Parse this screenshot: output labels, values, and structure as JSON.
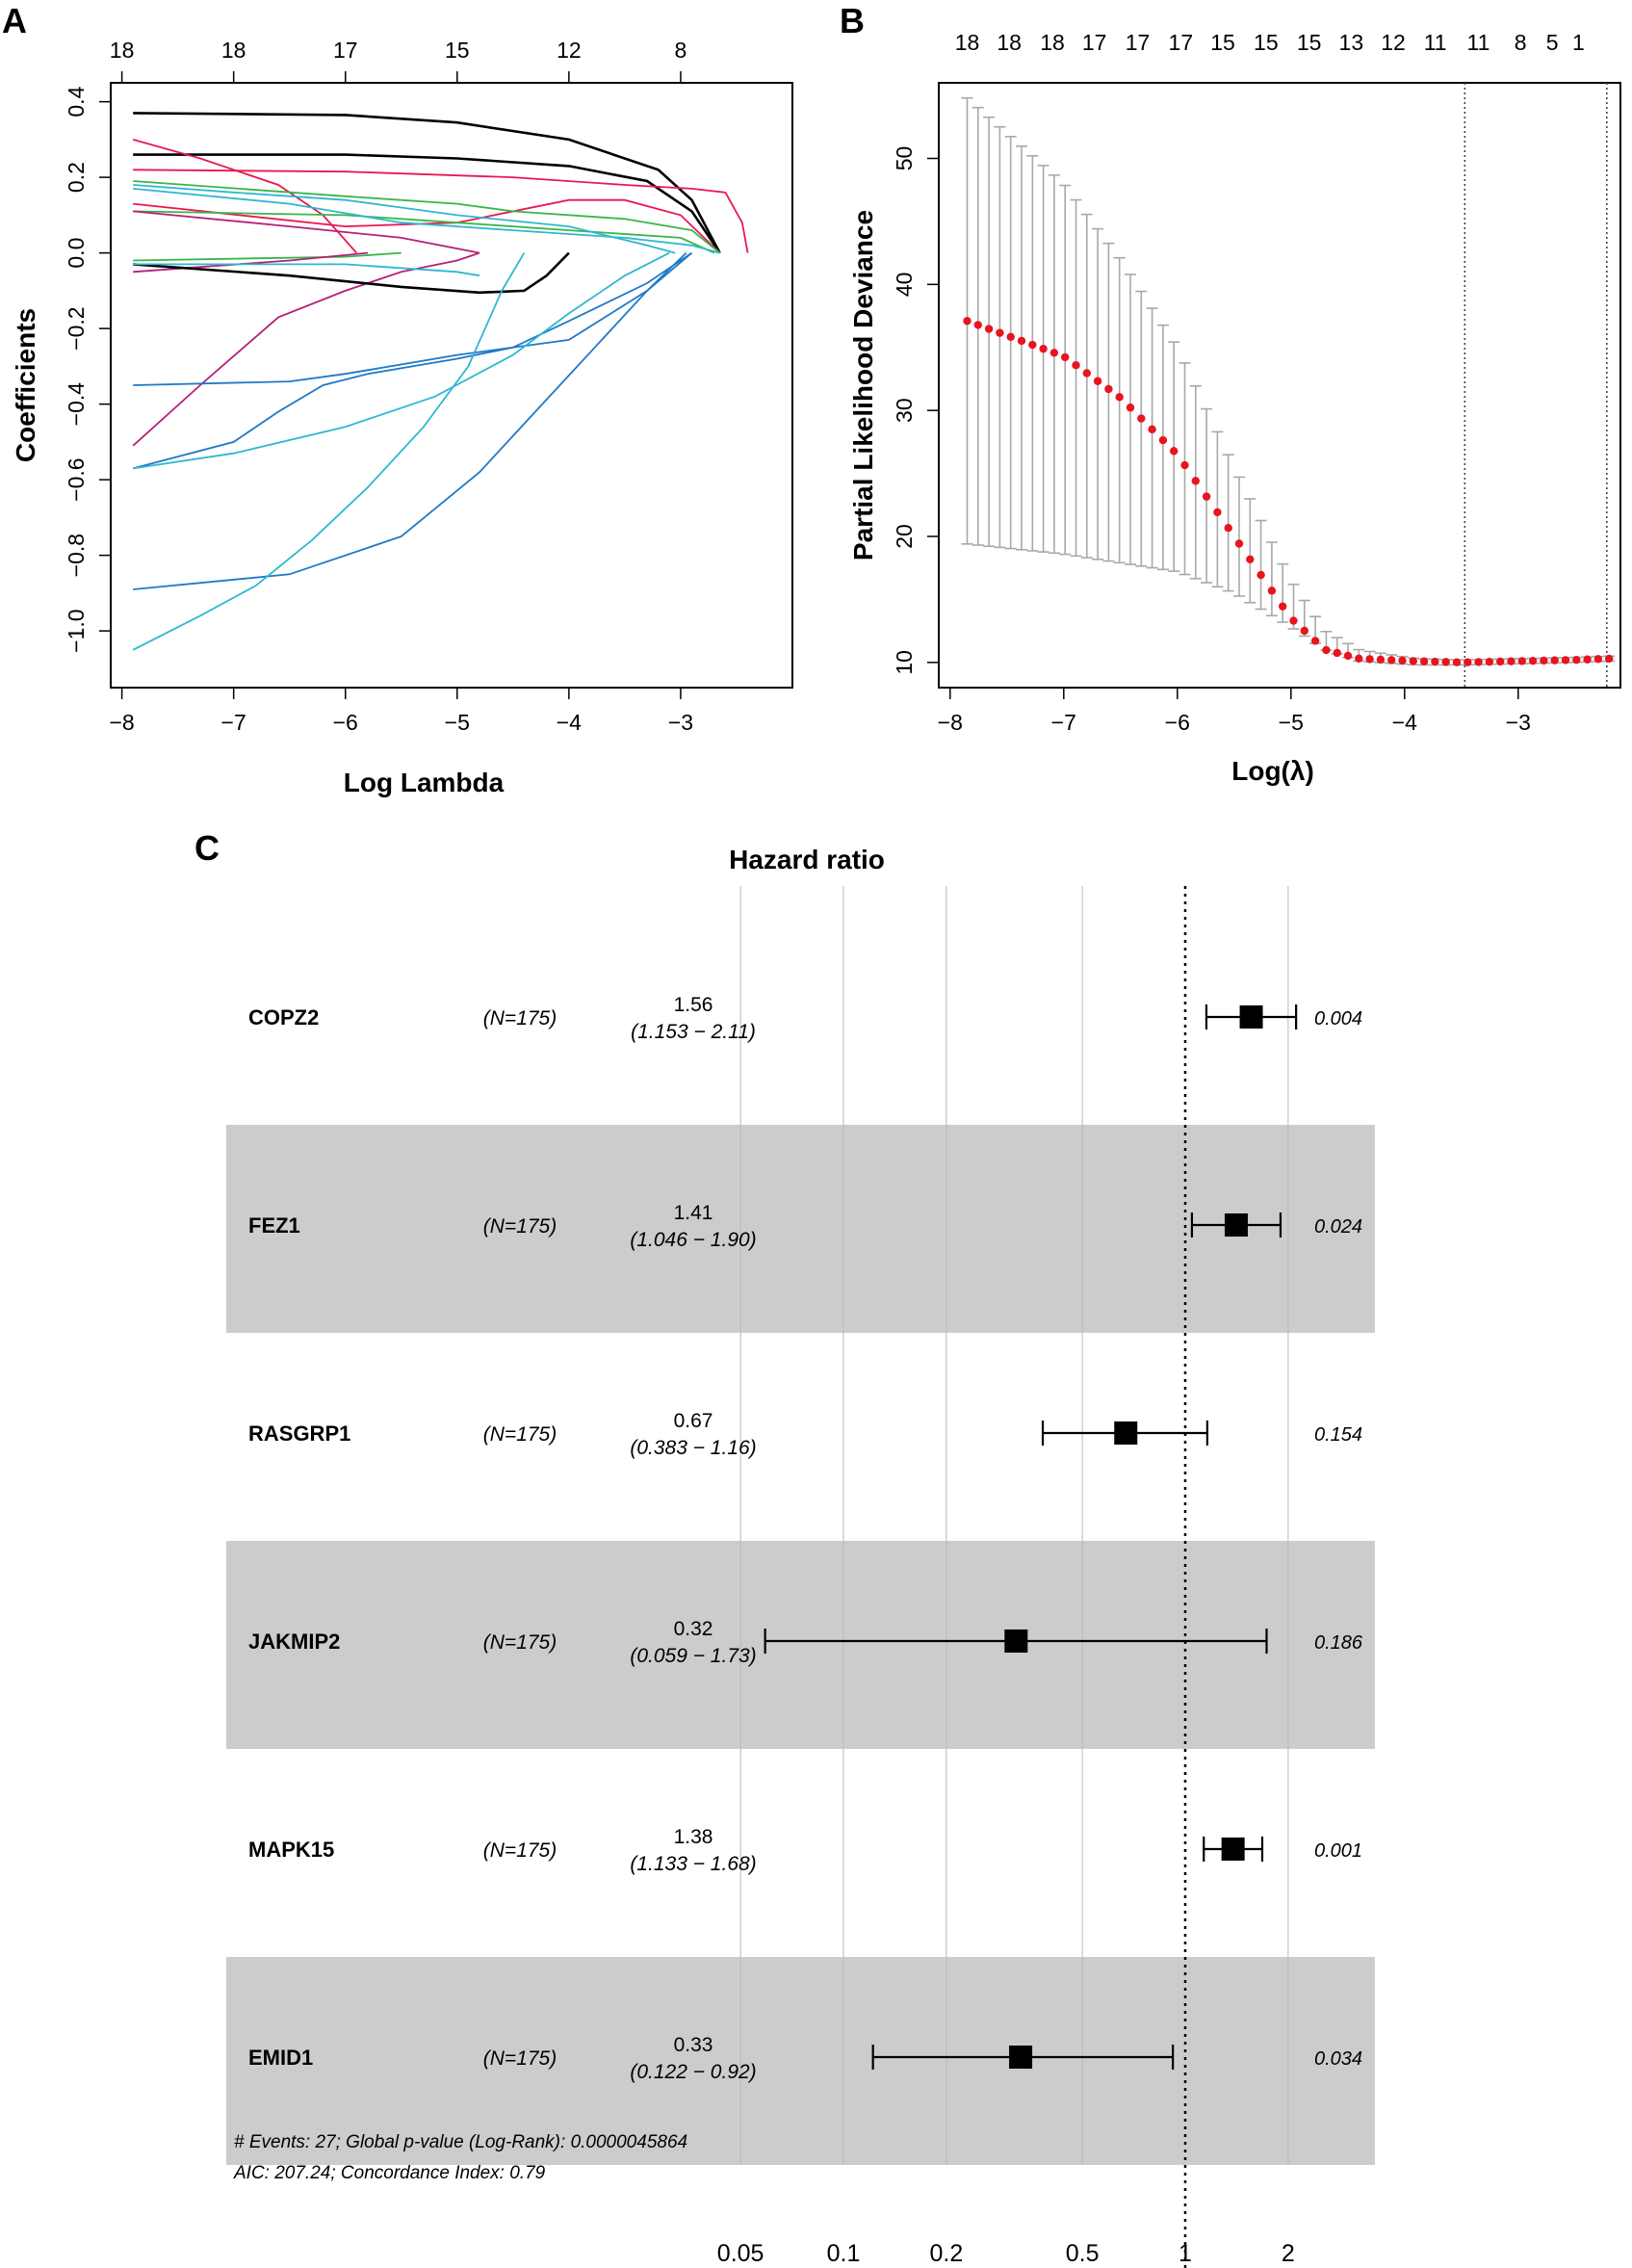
{
  "chart_data": [
    {
      "type": "line",
      "panel": "A",
      "xlabel": "Log Lambda",
      "ylabel": "Coefficients",
      "xlim": [
        -8.1,
        -2.0
      ],
      "ylim": [
        -1.15,
        0.45
      ],
      "x_ticks": [
        -8,
        -7,
        -6,
        -5,
        -4,
        -3
      ],
      "y_ticks": [
        -1.0,
        -0.8,
        -0.6,
        -0.4,
        -0.2,
        0.0,
        0.2,
        0.4
      ],
      "top_axis": {
        "positions": [
          -8,
          -7,
          -6,
          -5,
          -4,
          -3
        ],
        "labels": [
          "18",
          "18",
          "17",
          "15",
          "12",
          "8"
        ]
      },
      "series": [
        {
          "color": "#000000",
          "points": [
            [
              -7.9,
              0.37
            ],
            [
              -6,
              0.365
            ],
            [
              -5,
              0.345
            ],
            [
              -4,
              0.3
            ],
            [
              -3.2,
              0.22
            ],
            [
              -2.9,
              0.14
            ],
            [
              -2.65,
              0.0
            ]
          ]
        },
        {
          "color": "#000000",
          "points": [
            [
              -7.9,
              0.26
            ],
            [
              -6,
              0.26
            ],
            [
              -5,
              0.25
            ],
            [
              -4,
              0.23
            ],
            [
              -3.3,
              0.19
            ],
            [
              -2.9,
              0.11
            ],
            [
              -2.65,
              0.0
            ]
          ]
        },
        {
          "color": "#e8194f",
          "points": [
            [
              -7.9,
              0.22
            ],
            [
              -6,
              0.215
            ],
            [
              -4.5,
              0.2
            ],
            [
              -3.5,
              0.18
            ],
            [
              -2.9,
              0.17
            ],
            [
              -2.6,
              0.16
            ],
            [
              -2.45,
              0.08
            ],
            [
              -2.4,
              0.0
            ]
          ]
        },
        {
          "color": "#e8194f",
          "points": [
            [
              -7.9,
              0.3
            ],
            [
              -7.3,
              0.25
            ],
            [
              -6.6,
              0.18
            ],
            [
              -6.2,
              0.1
            ],
            [
              -5.9,
              0.0
            ]
          ]
        },
        {
          "color": "#e8194f",
          "points": [
            [
              -7.9,
              0.13
            ],
            [
              -6,
              0.07
            ],
            [
              -5,
              0.08
            ],
            [
              -4,
              0.14
            ],
            [
              -3.5,
              0.14
            ],
            [
              -3.0,
              0.1
            ],
            [
              -2.65,
              0.0
            ]
          ]
        },
        {
          "color": "#3ab54a",
          "points": [
            [
              -7.9,
              0.19
            ],
            [
              -6,
              0.15
            ],
            [
              -5,
              0.13
            ],
            [
              -4.5,
              0.11
            ],
            [
              -3.5,
              0.09
            ],
            [
              -2.9,
              0.06
            ],
            [
              -2.65,
              0.0
            ]
          ]
        },
        {
          "color": "#3ab54a",
          "points": [
            [
              -7.9,
              0.11
            ],
            [
              -6,
              0.1
            ],
            [
              -5,
              0.08
            ],
            [
              -4,
              0.06
            ],
            [
              -3,
              0.04
            ],
            [
              -2.7,
              0.0
            ]
          ]
        },
        {
          "color": "#3ab54a",
          "points": [
            [
              -7.9,
              -0.02
            ],
            [
              -6,
              -0.01
            ],
            [
              -5.5,
              0.0
            ]
          ]
        },
        {
          "color": "#2eb8cf",
          "points": [
            [
              -7.9,
              0.17
            ],
            [
              -6.5,
              0.13
            ],
            [
              -5.5,
              0.08
            ],
            [
              -4.5,
              0.06
            ],
            [
              -3.5,
              0.04
            ],
            [
              -2.9,
              0.02
            ],
            [
              -2.65,
              0.0
            ]
          ]
        },
        {
          "color": "#b5207a",
          "points": [
            [
              -7.9,
              0.11
            ],
            [
              -6.5,
              0.07
            ],
            [
              -5.5,
              0.04
            ],
            [
              -4.8,
              0.0
            ]
          ]
        },
        {
          "color": "#b5207a",
          "points": [
            [
              -7.9,
              -0.05
            ],
            [
              -6.5,
              -0.02
            ],
            [
              -5.8,
              0.0
            ]
          ]
        },
        {
          "color": "#b5207a",
          "points": [
            [
              -7.9,
              -0.51
            ],
            [
              -7.3,
              -0.35
            ],
            [
              -6.6,
              -0.17
            ],
            [
              -6,
              -0.1
            ],
            [
              -5.5,
              -0.05
            ],
            [
              -5,
              -0.02
            ],
            [
              -4.8,
              0.0
            ]
          ]
        },
        {
          "color": "#000000",
          "points": [
            [
              -7.9,
              -0.03
            ],
            [
              -6.5,
              -0.06
            ],
            [
              -5.5,
              -0.09
            ],
            [
              -4.8,
              -0.105
            ],
            [
              -4.4,
              -0.1
            ],
            [
              -4.2,
              -0.06
            ],
            [
              -4.0,
              0.0
            ]
          ]
        },
        {
          "color": "#1f78c8",
          "points": [
            [
              -7.9,
              -0.35
            ],
            [
              -6.5,
              -0.34
            ],
            [
              -6,
              -0.32
            ],
            [
              -5.8,
              -0.31
            ],
            [
              -5,
              -0.27
            ],
            [
              -4,
              -0.23
            ],
            [
              -3.3,
              -0.1
            ],
            [
              -2.9,
              0.0
            ]
          ]
        },
        {
          "color": "#1f78c8",
          "points": [
            [
              -7.9,
              -0.57
            ],
            [
              -7,
              -0.5
            ],
            [
              -6.6,
              -0.42
            ],
            [
              -6.2,
              -0.35
            ],
            [
              -5.8,
              -0.32
            ],
            [
              -5,
              -0.28
            ],
            [
              -4.5,
              -0.25
            ],
            [
              -4,
              -0.18
            ],
            [
              -3.3,
              -0.08
            ],
            [
              -2.9,
              0.0
            ]
          ]
        },
        {
          "color": "#1f78c8",
          "points": [
            [
              -7.9,
              -0.89
            ],
            [
              -6.5,
              -0.85
            ],
            [
              -5.5,
              -0.75
            ],
            [
              -4.8,
              -0.58
            ],
            [
              -4.3,
              -0.42
            ],
            [
              -3.8,
              -0.26
            ],
            [
              -3.3,
              -0.1
            ],
            [
              -2.95,
              0.0
            ]
          ]
        },
        {
          "color": "#2eb8cf",
          "points": [
            [
              -7.9,
              -0.57
            ],
            [
              -7,
              -0.53
            ],
            [
              -6,
              -0.46
            ],
            [
              -5.2,
              -0.38
            ],
            [
              -4.5,
              -0.27
            ],
            [
              -4,
              -0.16
            ],
            [
              -3.5,
              -0.06
            ],
            [
              -3.1,
              0.0
            ]
          ]
        },
        {
          "color": "#2eb8cf",
          "points": [
            [
              -7.9,
              -1.05
            ],
            [
              -7.3,
              -0.96
            ],
            [
              -6.8,
              -0.88
            ],
            [
              -6.3,
              -0.76
            ],
            [
              -5.8,
              -0.62
            ],
            [
              -5.3,
              -0.46
            ],
            [
              -4.9,
              -0.3
            ],
            [
              -4.6,
              -0.1
            ],
            [
              -4.4,
              0.0
            ]
          ]
        },
        {
          "color": "#2eb8cf",
          "points": [
            [
              -7.9,
              0.18
            ],
            [
              -7,
              0.16
            ],
            [
              -6,
              0.14
            ],
            [
              -5.5,
              0.12
            ],
            [
              -5,
              0.1
            ],
            [
              -4,
              0.07
            ],
            [
              -3.3,
              0.02
            ],
            [
              -3.05,
              0.0
            ]
          ]
        },
        {
          "color": "#2eb8cf",
          "points": [
            [
              -7.9,
              -0.03
            ],
            [
              -6,
              -0.03
            ],
            [
              -5,
              -0.05
            ],
            [
              -4.8,
              -0.06
            ]
          ]
        }
      ]
    },
    {
      "type": "scatter",
      "panel": "B",
      "xlabel": "Log(λ)",
      "ylabel": "Partial Likelihood Deviance",
      "xlim": [
        -8.1,
        -2.1
      ],
      "ylim": [
        8,
        56
      ],
      "x_ticks": [
        -8,
        -7,
        -6,
        -5,
        -4,
        -3
      ],
      "y_ticks": [
        10,
        20,
        30,
        40,
        50
      ],
      "top_axis": {
        "positions": [
          -7.85,
          -7.48,
          -7.1,
          -6.73,
          -6.35,
          -5.97,
          -5.6,
          -5.22,
          -4.84,
          -4.47,
          -4.1,
          -3.73,
          -3.35,
          -2.98,
          -2.7,
          -2.47
        ],
        "labels": [
          "18",
          "18",
          "18",
          "17",
          "17",
          "17",
          "15",
          "15",
          "15",
          "13",
          "12",
          "11",
          "11",
          "8",
          "5",
          "1"
        ]
      },
      "vlines": [
        -3.47,
        -2.22
      ],
      "cv_curve": {
        "x_start": -7.85,
        "x_end": -2.2,
        "n_points": 60,
        "mean_knots": [
          [
            -7.85,
            37.1
          ],
          [
            -7,
            34.3
          ],
          [
            -6.5,
            31.0
          ],
          [
            -6,
            26.5
          ],
          [
            -5.5,
            20.0
          ],
          [
            -5,
            13.5
          ],
          [
            -4.7,
            11.0
          ],
          [
            -4.4,
            10.3
          ],
          [
            -3.9,
            10.1
          ],
          [
            -3.5,
            10.0
          ],
          [
            -3,
            10.1
          ],
          [
            -2.5,
            10.2
          ],
          [
            -2.2,
            10.3
          ]
        ],
        "upper_knots": [
          [
            -7.85,
            54.8
          ],
          [
            -7.5,
            52.0
          ],
          [
            -7,
            48.0
          ],
          [
            -6.5,
            42.0
          ],
          [
            -6,
            35.0
          ],
          [
            -5.5,
            25.5
          ],
          [
            -5,
            16.5
          ],
          [
            -4.7,
            12.5
          ],
          [
            -4.4,
            11.0
          ],
          [
            -3.9,
            10.3
          ],
          [
            -3.5,
            10.2
          ],
          [
            -3,
            10.3
          ],
          [
            -2.5,
            10.4
          ],
          [
            -2.2,
            10.5
          ]
        ],
        "lower_knots": [
          [
            -7.85,
            19.4
          ],
          [
            -7,
            18.6
          ],
          [
            -6,
            17.2
          ],
          [
            -5.5,
            15.5
          ],
          [
            -5,
            12.8
          ],
          [
            -4.7,
            11.0
          ],
          [
            -4.4,
            10.1
          ],
          [
            -3.9,
            9.8
          ],
          [
            -3.5,
            9.8
          ],
          [
            -3,
            9.9
          ],
          [
            -2.5,
            10.0
          ],
          [
            -2.2,
            10.1
          ]
        ]
      }
    },
    {
      "type": "forest",
      "panel": "C",
      "title": "Hazard ratio",
      "x_scale": "log",
      "x_ticks": [
        0.05,
        0.1,
        0.2,
        0.5,
        1,
        2
      ],
      "x_tick_labels": [
        "0.05",
        "0.1",
        "0.2",
        "0.5",
        "1",
        "2"
      ],
      "reference": 1,
      "rows": [
        {
          "gene": "COPZ2",
          "n": "(N=175)",
          "hr_text": "1.56",
          "ci_text": "(1.153 − 2.11)",
          "hr": 1.56,
          "lo": 1.153,
          "hi": 2.11,
          "p": "0.004",
          "shaded": false
        },
        {
          "gene": "FEZ1",
          "n": "(N=175)",
          "hr_text": "1.41",
          "ci_text": "(1.046 − 1.90)",
          "hr": 1.41,
          "lo": 1.046,
          "hi": 1.9,
          "p": "0.024",
          "shaded": true
        },
        {
          "gene": "RASGRP1",
          "n": "(N=175)",
          "hr_text": "0.67",
          "ci_text": "(0.383 − 1.16)",
          "hr": 0.67,
          "lo": 0.383,
          "hi": 1.16,
          "p": "0.154",
          "shaded": false
        },
        {
          "gene": "JAKMIP2",
          "n": "(N=175)",
          "hr_text": "0.32",
          "ci_text": "(0.059 − 1.73)",
          "hr": 0.32,
          "lo": 0.059,
          "hi": 1.73,
          "p": "0.186",
          "shaded": true
        },
        {
          "gene": "MAPK15",
          "n": "(N=175)",
          "hr_text": "1.38",
          "ci_text": "(1.133 − 1.68)",
          "hr": 1.38,
          "lo": 1.133,
          "hi": 1.68,
          "p": "0.001",
          "shaded": false
        },
        {
          "gene": "EMID1",
          "n": "(N=175)",
          "hr_text": "0.33",
          "ci_text": "(0.122 − 0.92)",
          "hr": 0.33,
          "lo": 0.122,
          "hi": 0.92,
          "p": "0.034",
          "shaded": true
        }
      ],
      "footer": [
        "# Events: 27; Global p-value (Log-Rank): 0.0000045864",
        "AIC: 207.24; Concordance Index: 0.79"
      ]
    }
  ],
  "panel_labels": [
    "A",
    "B",
    "C"
  ],
  "colors": {
    "forest_shade": "#cccccc",
    "cv_point": "#e8141e",
    "cv_error": "#a8a8a8"
  }
}
